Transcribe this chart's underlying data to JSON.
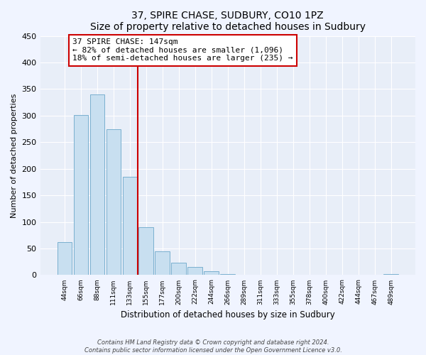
{
  "title": "37, SPIRE CHASE, SUDBURY, CO10 1PZ",
  "subtitle": "Size of property relative to detached houses in Sudbury",
  "xlabel": "Distribution of detached houses by size in Sudbury",
  "ylabel": "Number of detached properties",
  "bar_labels": [
    "44sqm",
    "66sqm",
    "88sqm",
    "111sqm",
    "133sqm",
    "155sqm",
    "177sqm",
    "200sqm",
    "222sqm",
    "244sqm",
    "266sqm",
    "289sqm",
    "311sqm",
    "333sqm",
    "355sqm",
    "378sqm",
    "400sqm",
    "422sqm",
    "444sqm",
    "467sqm",
    "489sqm"
  ],
  "bar_heights": [
    62,
    301,
    340,
    275,
    185,
    90,
    45,
    23,
    15,
    7,
    2,
    1,
    1,
    1,
    1,
    1,
    1,
    1,
    1,
    1,
    2
  ],
  "bar_color": "#c8dff0",
  "bar_edge_color": "#7ab0cf",
  "vline_x": 4.5,
  "vline_color": "#cc0000",
  "annotation_line1": "37 SPIRE CHASE: 147sqm",
  "annotation_line2": "← 82% of detached houses are smaller (1,096)",
  "annotation_line3": "18% of semi-detached houses are larger (235) →",
  "annotation_box_edge": "#cc0000",
  "ylim": [
    0,
    450
  ],
  "yticks": [
    0,
    50,
    100,
    150,
    200,
    250,
    300,
    350,
    400,
    450
  ],
  "footer_line1": "Contains HM Land Registry data © Crown copyright and database right 2024.",
  "footer_line2": "Contains public sector information licensed under the Open Government Licence v3.0.",
  "bg_color": "#f0f4ff",
  "plot_bg_color": "#e8eef8"
}
